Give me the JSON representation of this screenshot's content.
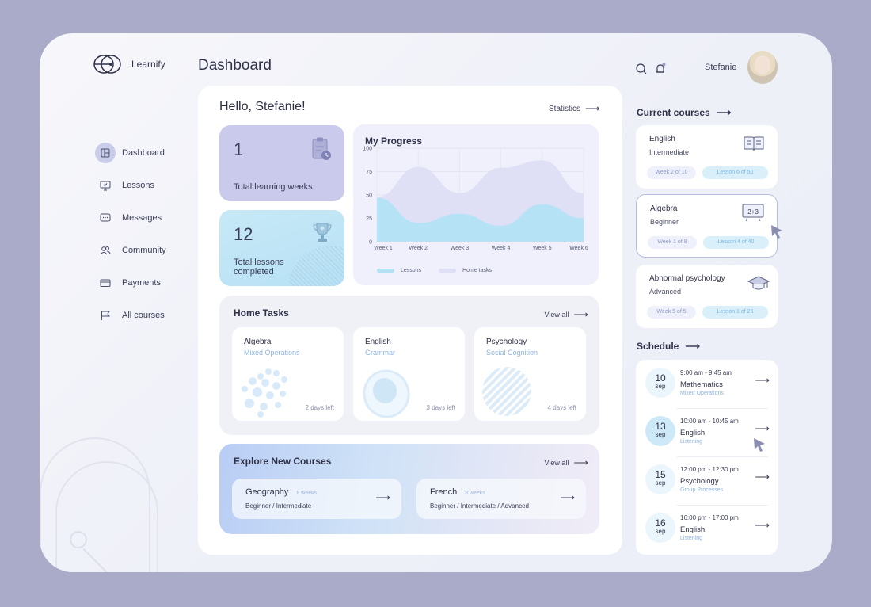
{
  "app": {
    "name": "Learnify"
  },
  "sidebar": {
    "items": [
      {
        "label": "Dashboard",
        "icon": "dashboard-icon",
        "active": true
      },
      {
        "label": "Lessons",
        "icon": "monitor-icon"
      },
      {
        "label": "Messages",
        "icon": "chat-icon"
      },
      {
        "label": "Community",
        "icon": "users-icon"
      },
      {
        "label": "Payments",
        "icon": "card-icon"
      },
      {
        "label": "All courses",
        "icon": "flag-icon"
      }
    ]
  },
  "header": {
    "title": "Dashboard",
    "user_name": "Stefanie"
  },
  "main": {
    "greeting": "Hello, Stefanie!",
    "statistics_link": "Statistics",
    "weeks": {
      "value": "1",
      "label": "Total learning weeks"
    },
    "lessons": {
      "value": "12",
      "label": "Total lessons completed"
    },
    "progress": {
      "title": "My Progress"
    },
    "home_tasks": {
      "title": "Home Tasks",
      "view_all": "View all",
      "items": [
        {
          "subject": "Algebra",
          "topic": "Mixed Operations",
          "due": "2 days left"
        },
        {
          "subject": "English",
          "topic": "Grammar",
          "due": "3 days left"
        },
        {
          "subject": "Psychology",
          "topic": "Social Cognition",
          "due": "4 days left"
        }
      ]
    },
    "explore": {
      "title": "Explore New Courses",
      "view_all": "View all",
      "courses": [
        {
          "name": "Geography",
          "weeks": "8 weeks",
          "levels": "Beginner / Intermediate"
        },
        {
          "name": "French",
          "weeks": "8 weeks",
          "levels": "Beginner / Intermediate / Advanced"
        }
      ]
    }
  },
  "current_courses": {
    "title": "Current courses",
    "items": [
      {
        "name": "English",
        "level": "Intermediate",
        "week": "Week 2 of 10",
        "lesson": "Lesson 6 of 50",
        "icon": "book-icon"
      },
      {
        "name": "Algebra",
        "level": "Beginner",
        "week": "Week 1 of 8",
        "lesson": "Lesson 4 of 40",
        "icon": "board-icon",
        "board_text": "2+3"
      },
      {
        "name": "Abnormal psychology",
        "level": "Advanced",
        "week": "Week 5 of 5",
        "lesson": "Lesson 1 of 25",
        "icon": "graduation-cap-icon"
      }
    ]
  },
  "schedule": {
    "title": "Schedule",
    "items": [
      {
        "day": "10",
        "month": "sep",
        "time": "9:00 am - 9:45 am",
        "subject": "Mathematics",
        "topic": "Mixed Operations"
      },
      {
        "day": "13",
        "month": "sep",
        "time": "10:00 am - 10:45 am",
        "subject": "English",
        "topic": "Listening"
      },
      {
        "day": "15",
        "month": "sep",
        "time": "12:00 pm - 12:30 pm",
        "subject": "Psychology",
        "topic": "Group Processes"
      },
      {
        "day": "16",
        "month": "sep",
        "time": "16:00 pm - 17:00 pm",
        "subject": "English",
        "topic": "Listening"
      }
    ]
  },
  "colors": {
    "lessons": "#b3e2f5",
    "home_tasks": "#dfe0f6",
    "accent": "#8eb3dd"
  },
  "chart_data": {
    "type": "area",
    "title": "My Progress",
    "categories": [
      "Week 1",
      "Week 2",
      "Week 3",
      "Week 4",
      "Week 5",
      "Week 6"
    ],
    "ylim": [
      0,
      100
    ],
    "yticks": [
      0,
      25,
      50,
      75,
      100
    ],
    "series": [
      {
        "name": "Home tasks",
        "values": [
          48,
          80,
          52,
          79,
          87,
          52
        ]
      },
      {
        "name": "Lessons",
        "values": [
          47,
          20,
          30,
          17,
          40,
          25
        ]
      }
    ],
    "legend": "bottom"
  }
}
